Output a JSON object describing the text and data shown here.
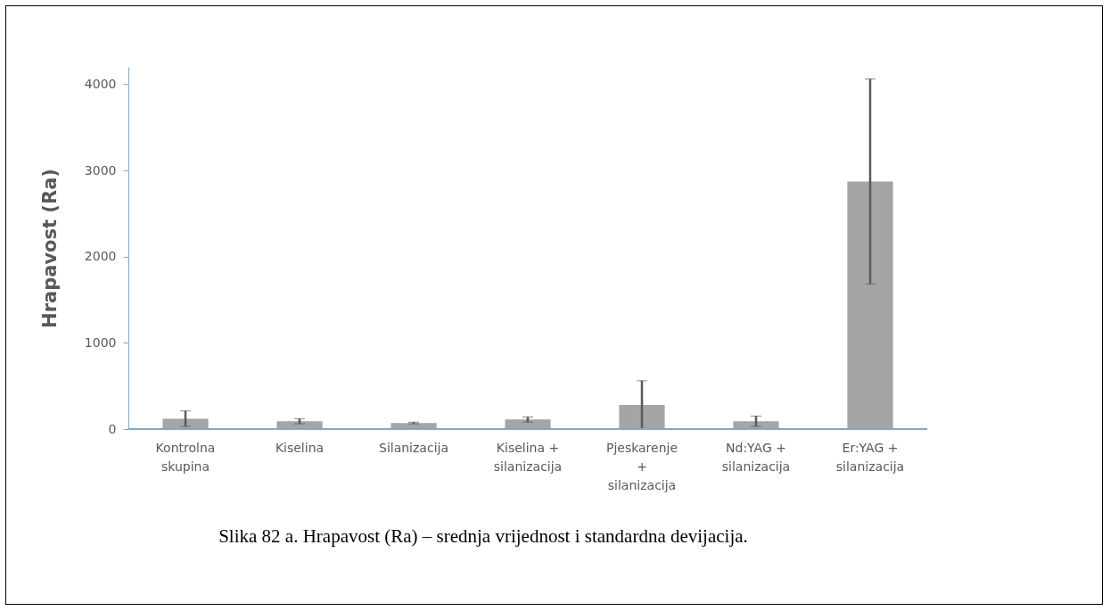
{
  "chart_data": {
    "type": "bar",
    "ylabel": "Hrapavost (Ra)",
    "categories": [
      "Kontrolna skupina",
      "Kiselina",
      "Silanizacija",
      "Kiselina + silanizacija",
      "Pjeskarenje + silanizacija",
      "Nd:YAG + silanizacija",
      "Er:YAG + silanizacija"
    ],
    "values": [
      120,
      90,
      70,
      110,
      280,
      90,
      2870
    ],
    "errors": [
      90,
      30,
      10,
      30,
      280,
      60,
      1190
    ],
    "color": "#a5a5a5",
    "ylim": [
      0,
      4200
    ],
    "yticks": [
      0,
      1000,
      2000,
      3000,
      4000
    ],
    "grid": false,
    "annotations": [
      "Slika 82 a.  Hrapavost (Ra) – srednja vrijednost i standardna devijacija."
    ]
  }
}
